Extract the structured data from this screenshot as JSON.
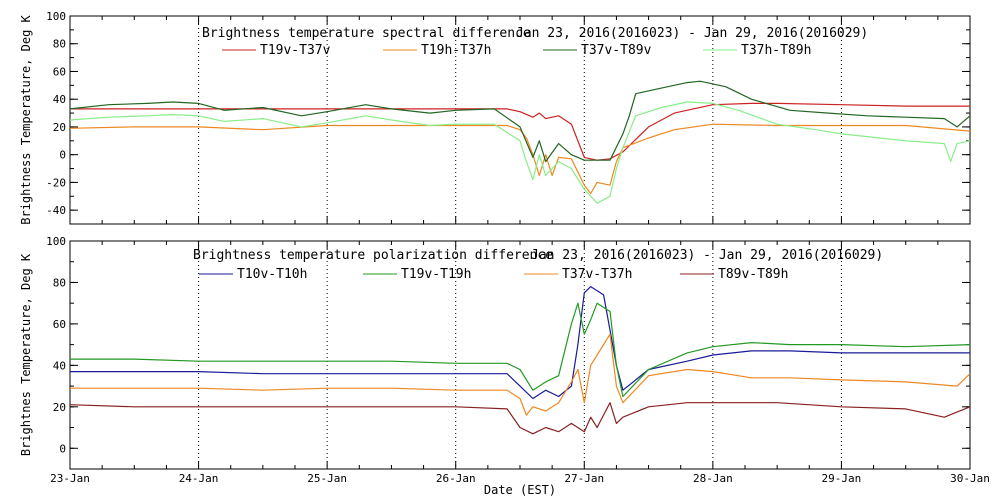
{
  "figure": {
    "xlabel": "Date (EST)",
    "x_tick_labels": [
      "23-Jan",
      "24-Jan",
      "25-Jan",
      "26-Jan",
      "27-Jan",
      "28-Jan",
      "29-Jan",
      "30-Jan"
    ]
  },
  "chart_data": [
    {
      "type": "line",
      "title": "Brightness temperature spectral difference",
      "subtitle": "Jan 23, 2016(2016023) - Jan 29, 2016(2016029)",
      "ylabel": "Brightness Temperature, Deg K",
      "xlim": [
        "23-Jan",
        "30-Jan"
      ],
      "ylim": [
        -50,
        100
      ],
      "y_ticks": [
        "100",
        "80",
        "60",
        "40",
        "20",
        "0",
        "-20",
        "-40"
      ],
      "grid": "dotted vertical at day boundaries",
      "legend_position": "top",
      "series": [
        {
          "name": "T19v-T37v",
          "color": "#cc2222",
          "points": [
            [
              0,
              33
            ],
            [
              0.5,
              33
            ],
            [
              1,
              33
            ],
            [
              1.5,
              33
            ],
            [
              2,
              33
            ],
            [
              2.5,
              33
            ],
            [
              3,
              33
            ],
            [
              3.4,
              33
            ],
            [
              3.5,
              31
            ],
            [
              3.6,
              27
            ],
            [
              3.65,
              30
            ],
            [
              3.7,
              26
            ],
            [
              3.8,
              28
            ],
            [
              3.9,
              22
            ],
            [
              4,
              -2
            ],
            [
              4.1,
              -4
            ],
            [
              4.2,
              -3
            ],
            [
              4.3,
              2
            ],
            [
              4.5,
              20
            ],
            [
              4.7,
              30
            ],
            [
              5,
              36
            ],
            [
              5.3,
              37
            ],
            [
              5.5,
              37
            ],
            [
              6,
              36
            ],
            [
              6.5,
              35
            ],
            [
              7,
              35
            ]
          ]
        },
        {
          "name": "T19h-T37h",
          "color": "#ee8822",
          "points": [
            [
              0,
              19
            ],
            [
              0.5,
              20
            ],
            [
              1,
              20
            ],
            [
              1.5,
              18
            ],
            [
              2,
              21
            ],
            [
              2.5,
              21
            ],
            [
              3,
              21
            ],
            [
              3.4,
              21
            ],
            [
              3.5,
              18
            ],
            [
              3.55,
              12
            ],
            [
              3.6,
              0
            ],
            [
              3.65,
              -15
            ],
            [
              3.7,
              0
            ],
            [
              3.75,
              -15
            ],
            [
              3.8,
              -2
            ],
            [
              3.9,
              -3
            ],
            [
              4,
              -22
            ],
            [
              4.05,
              -28
            ],
            [
              4.1,
              -20
            ],
            [
              4.2,
              -22
            ],
            [
              4.25,
              -5
            ],
            [
              4.3,
              5
            ],
            [
              4.5,
              12
            ],
            [
              4.7,
              18
            ],
            [
              5,
              22
            ],
            [
              5.5,
              21
            ],
            [
              6,
              21
            ],
            [
              6.5,
              21
            ],
            [
              7,
              17
            ]
          ]
        },
        {
          "name": "T37v-T89v",
          "color": "#226622",
          "points": [
            [
              0,
              33
            ],
            [
              0.3,
              36
            ],
            [
              0.6,
              37
            ],
            [
              0.8,
              38
            ],
            [
              1,
              37
            ],
            [
              1.2,
              32
            ],
            [
              1.5,
              34
            ],
            [
              1.8,
              28
            ],
            [
              2,
              31
            ],
            [
              2.3,
              36
            ],
            [
              2.5,
              33
            ],
            [
              2.8,
              30
            ],
            [
              3,
              32
            ],
            [
              3.3,
              33
            ],
            [
              3.5,
              20
            ],
            [
              3.6,
              -2
            ],
            [
              3.65,
              10
            ],
            [
              3.7,
              -5
            ],
            [
              3.8,
              8
            ],
            [
              3.9,
              0
            ],
            [
              4,
              -4
            ],
            [
              4.2,
              -4
            ],
            [
              4.3,
              15
            ],
            [
              4.35,
              28
            ],
            [
              4.4,
              44
            ],
            [
              4.6,
              48
            ],
            [
              4.8,
              52
            ],
            [
              4.9,
              53
            ],
            [
              5.1,
              49
            ],
            [
              5.3,
              40
            ],
            [
              5.6,
              32
            ],
            [
              5.9,
              30
            ],
            [
              6.2,
              28
            ],
            [
              6.5,
              27
            ],
            [
              6.8,
              26
            ],
            [
              6.9,
              20
            ],
            [
              7,
              28
            ]
          ]
        },
        {
          "name": "T37h-T89h",
          "color": "#88ee88",
          "points": [
            [
              0,
              25
            ],
            [
              0.3,
              27
            ],
            [
              0.6,
              28
            ],
            [
              0.8,
              29
            ],
            [
              1,
              28
            ],
            [
              1.2,
              24
            ],
            [
              1.5,
              26
            ],
            [
              1.8,
              20
            ],
            [
              2,
              23
            ],
            [
              2.3,
              28
            ],
            [
              2.5,
              25
            ],
            [
              2.8,
              21
            ],
            [
              3,
              22
            ],
            [
              3.3,
              22
            ],
            [
              3.5,
              10
            ],
            [
              3.55,
              -5
            ],
            [
              3.6,
              -18
            ],
            [
              3.65,
              0
            ],
            [
              3.7,
              -15
            ],
            [
              3.8,
              -5
            ],
            [
              3.9,
              -10
            ],
            [
              4,
              -25
            ],
            [
              4.1,
              -35
            ],
            [
              4.2,
              -30
            ],
            [
              4.25,
              -10
            ],
            [
              4.3,
              5
            ],
            [
              4.4,
              28
            ],
            [
              4.6,
              34
            ],
            [
              4.8,
              38
            ],
            [
              5,
              37
            ],
            [
              5.2,
              32
            ],
            [
              5.5,
              22
            ],
            [
              5.8,
              18
            ],
            [
              6,
              15
            ],
            [
              6.3,
              12
            ],
            [
              6.5,
              10
            ],
            [
              6.8,
              8
            ],
            [
              6.85,
              -5
            ],
            [
              6.9,
              8
            ],
            [
              7,
              10
            ]
          ]
        }
      ]
    },
    {
      "type": "line",
      "title": "Brightness temperature polarization difference",
      "subtitle": "Jan 23, 2016(2016023) - Jan 29, 2016(2016029)",
      "ylabel": "Brightnes Temperature, Deg K",
      "xlim": [
        "23-Jan",
        "30-Jan"
      ],
      "ylim": [
        -10,
        100
      ],
      "y_ticks": [
        "100",
        "80",
        "60",
        "40",
        "20",
        "0"
      ],
      "grid": "dotted vertical at day boundaries",
      "legend_position": "top",
      "series": [
        {
          "name": "T10v-T10h",
          "color": "#1a1a99",
          "points": [
            [
              0,
              37
            ],
            [
              0.5,
              37
            ],
            [
              1,
              37
            ],
            [
              1.5,
              36
            ],
            [
              2,
              36
            ],
            [
              2.5,
              36
            ],
            [
              3,
              36
            ],
            [
              3.4,
              36
            ],
            [
              3.5,
              30
            ],
            [
              3.6,
              24
            ],
            [
              3.7,
              28
            ],
            [
              3.8,
              25
            ],
            [
              3.9,
              30
            ],
            [
              3.95,
              50
            ],
            [
              4.0,
              75
            ],
            [
              4.05,
              78
            ],
            [
              4.15,
              74
            ],
            [
              4.25,
              40
            ],
            [
              4.3,
              28
            ],
            [
              4.5,
              38
            ],
            [
              4.8,
              42
            ],
            [
              5,
              45
            ],
            [
              5.3,
              47
            ],
            [
              5.6,
              47
            ],
            [
              6,
              46
            ],
            [
              6.5,
              46
            ],
            [
              7,
              46
            ]
          ]
        },
        {
          "name": "T19v-T19h",
          "color": "#229922",
          "points": [
            [
              0,
              43
            ],
            [
              0.5,
              43
            ],
            [
              1,
              42
            ],
            [
              1.5,
              42
            ],
            [
              2,
              42
            ],
            [
              2.5,
              42
            ],
            [
              3,
              41
            ],
            [
              3.4,
              41
            ],
            [
              3.5,
              38
            ],
            [
              3.6,
              28
            ],
            [
              3.7,
              32
            ],
            [
              3.8,
              35
            ],
            [
              3.9,
              60
            ],
            [
              3.95,
              70
            ],
            [
              4.0,
              55
            ],
            [
              4.05,
              62
            ],
            [
              4.1,
              70
            ],
            [
              4.2,
              66
            ],
            [
              4.25,
              40
            ],
            [
              4.3,
              25
            ],
            [
              4.5,
              38
            ],
            [
              4.8,
              46
            ],
            [
              5,
              49
            ],
            [
              5.3,
              51
            ],
            [
              5.6,
              50
            ],
            [
              6,
              50
            ],
            [
              6.5,
              49
            ],
            [
              7,
              50
            ]
          ]
        },
        {
          "name": "T37v-T37h",
          "color": "#ee8822",
          "points": [
            [
              0,
              29
            ],
            [
              0.5,
              29
            ],
            [
              1,
              29
            ],
            [
              1.5,
              28
            ],
            [
              2,
              29
            ],
            [
              2.5,
              29
            ],
            [
              3,
              28
            ],
            [
              3.4,
              28
            ],
            [
              3.5,
              24
            ],
            [
              3.55,
              16
            ],
            [
              3.6,
              20
            ],
            [
              3.7,
              18
            ],
            [
              3.8,
              22
            ],
            [
              3.9,
              32
            ],
            [
              3.95,
              38
            ],
            [
              4.0,
              22
            ],
            [
              4.05,
              40
            ],
            [
              4.1,
              45
            ],
            [
              4.2,
              55
            ],
            [
              4.25,
              30
            ],
            [
              4.3,
              22
            ],
            [
              4.5,
              35
            ],
            [
              4.8,
              38
            ],
            [
              5,
              37
            ],
            [
              5.3,
              34
            ],
            [
              5.6,
              34
            ],
            [
              6,
              33
            ],
            [
              6.5,
              32
            ],
            [
              6.9,
              30
            ],
            [
              7,
              36
            ]
          ]
        },
        {
          "name": "T89v-T89h",
          "color": "#882222",
          "points": [
            [
              0,
              21
            ],
            [
              0.5,
              20
            ],
            [
              1,
              20
            ],
            [
              1.5,
              20
            ],
            [
              2,
              20
            ],
            [
              2.5,
              20
            ],
            [
              3,
              20
            ],
            [
              3.4,
              19
            ],
            [
              3.5,
              10
            ],
            [
              3.6,
              7
            ],
            [
              3.7,
              10
            ],
            [
              3.8,
              8
            ],
            [
              3.9,
              12
            ],
            [
              4,
              8
            ],
            [
              4.05,
              15
            ],
            [
              4.1,
              10
            ],
            [
              4.2,
              22
            ],
            [
              4.25,
              12
            ],
            [
              4.3,
              15
            ],
            [
              4.5,
              20
            ],
            [
              4.8,
              22
            ],
            [
              5,
              22
            ],
            [
              5.5,
              22
            ],
            [
              6,
              20
            ],
            [
              6.5,
              19
            ],
            [
              6.8,
              15
            ],
            [
              7,
              20
            ]
          ]
        }
      ]
    }
  ]
}
